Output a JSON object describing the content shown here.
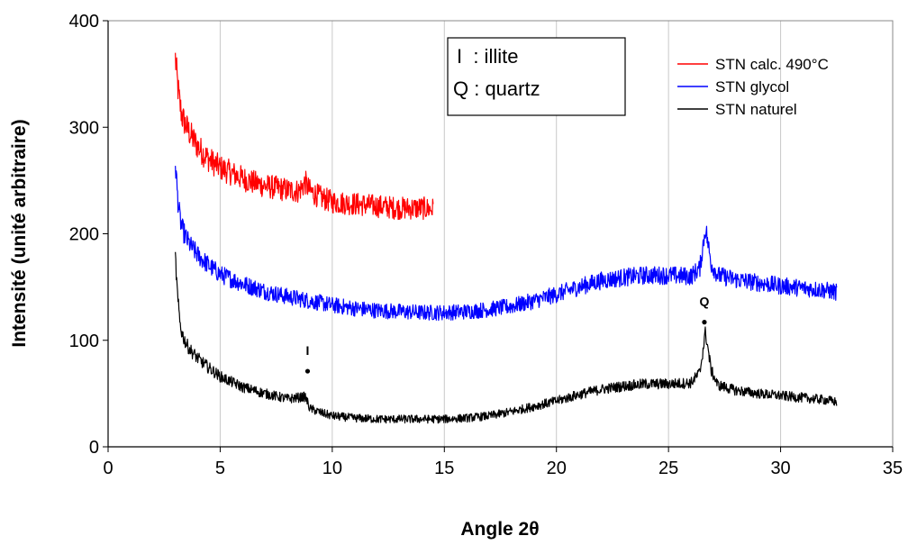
{
  "chart_data": {
    "type": "line",
    "xlabel": "Angle 2θ",
    "ylabel": "Intensité (unité arbitraire)",
    "xlim": [
      0,
      35
    ],
    "ylim": [
      0,
      400
    ],
    "xticks": [
      0,
      5,
      10,
      15,
      20,
      25,
      30,
      35
    ],
    "yticks": [
      0,
      100,
      200,
      300,
      400
    ],
    "grid": "vertical",
    "legend": "top-right",
    "annotation_box": [
      "I  : illite",
      "Q : quartz"
    ],
    "peak_labels": [
      {
        "text": "I",
        "x": 8.9,
        "y": 71
      },
      {
        "text": "Q",
        "x": 26.6,
        "y": 117
      }
    ],
    "series": [
      {
        "name": "STN calc. 490°C",
        "color": "#ff0000",
        "x": [
          3.0,
          3.1,
          3.2,
          3.3,
          3.5,
          3.7,
          4.0,
          4.3,
          4.6,
          5.0,
          5.5,
          6.0,
          6.5,
          7.0,
          7.5,
          8.0,
          8.5,
          8.8,
          9.0,
          9.5,
          10.0,
          10.5,
          11.0,
          11.5,
          12.0,
          12.5,
          13.0,
          13.5,
          14.0,
          14.5
        ],
        "values": [
          365,
          340,
          322,
          310,
          300,
          292,
          282,
          274,
          268,
          262,
          257,
          252,
          248,
          245,
          243,
          241,
          240,
          248,
          240,
          234,
          230,
          229,
          228,
          227,
          226,
          225,
          224,
          224,
          224,
          223
        ]
      },
      {
        "name": "STN glycol",
        "color": "#0000ff",
        "x": [
          3.0,
          3.1,
          3.2,
          3.3,
          3.5,
          3.7,
          4.0,
          4.5,
          5.0,
          6.0,
          7.0,
          8.0,
          9.0,
          10.0,
          11.0,
          12.0,
          13.0,
          14.0,
          15.0,
          16.0,
          17.0,
          18.0,
          19.0,
          20.0,
          21.0,
          22.0,
          23.0,
          24.0,
          25.0,
          26.0,
          26.4,
          26.65,
          26.9,
          27.2,
          28.0,
          29.0,
          30.0,
          31.0,
          32.0,
          32.5
        ],
        "values": [
          268,
          235,
          215,
          205,
          195,
          188,
          180,
          170,
          162,
          153,
          146,
          141,
          137,
          133,
          130,
          128,
          127,
          126,
          126,
          127,
          129,
          132,
          137,
          143,
          150,
          156,
          159,
          161,
          161,
          160,
          168,
          206,
          172,
          161,
          157,
          154,
          151,
          149,
          147,
          145
        ]
      },
      {
        "name": "STN naturel",
        "color": "#000000",
        "x": [
          3.0,
          3.1,
          3.2,
          3.3,
          3.5,
          3.7,
          4.0,
          4.5,
          5.0,
          6.0,
          7.0,
          8.0,
          8.8,
          9.0,
          9.5,
          10.0,
          11.0,
          12.0,
          13.0,
          14.0,
          15.0,
          16.0,
          17.0,
          18.0,
          19.0,
          20.0,
          21.0,
          22.0,
          23.0,
          24.0,
          25.0,
          26.0,
          26.4,
          26.65,
          26.9,
          27.2,
          28.0,
          29.0,
          30.0,
          31.0,
          32.0,
          32.5
        ],
        "values": [
          178,
          140,
          118,
          106,
          96,
          90,
          83,
          74,
          66,
          56,
          50,
          45,
          47,
          36,
          32,
          29,
          27,
          26,
          26,
          26,
          26,
          27,
          29,
          33,
          38,
          43,
          49,
          54,
          57,
          59,
          59,
          60,
          70,
          108,
          72,
          58,
          53,
          50,
          48,
          46,
          44,
          42
        ]
      }
    ]
  }
}
